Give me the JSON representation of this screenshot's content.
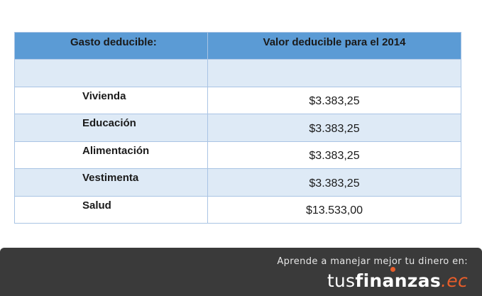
{
  "table": {
    "headers": {
      "expense": "Gasto deducible:",
      "value": "Valor deducible para el 2014"
    },
    "rows": [
      {
        "expense": "",
        "value": ""
      },
      {
        "expense": "Vivienda",
        "value": "$3.383,25"
      },
      {
        "expense": "Educación",
        "value": "$3.383,25"
      },
      {
        "expense": "Alimentación",
        "value": "$3.383,25"
      },
      {
        "expense": "Vestimenta",
        "value": "$3.383,25"
      },
      {
        "expense": "Salud",
        "value": "$13.533,00"
      }
    ]
  },
  "footer": {
    "tagline": "Aprende a manejar mejor tu dinero en:",
    "logo": {
      "part1": "tus",
      "part2": "finanzas",
      "part3": ".ec"
    }
  },
  "colors": {
    "header_bg": "#5b9bd5",
    "row_alt_bg": "#deeaf6",
    "border": "#a9c4e4",
    "footer_bg": "#3a3a3a",
    "logo_accent": "#e85d2a"
  }
}
